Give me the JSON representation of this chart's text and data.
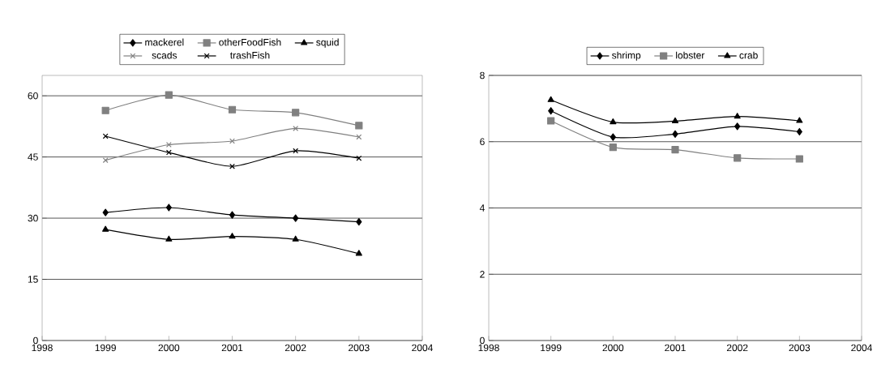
{
  "chart_data": [
    {
      "type": "line",
      "x": [
        1999,
        2000,
        2001,
        2002,
        2003
      ],
      "xlim": [
        1998,
        2004
      ],
      "xticks": [
        1998,
        1999,
        2000,
        2001,
        2002,
        2003,
        2004
      ],
      "ylim": [
        0,
        65
      ],
      "yticks": [
        0,
        15,
        30,
        45,
        60
      ],
      "grid": "y",
      "legend": "top",
      "line_style": "solid",
      "series": [
        {
          "name": "mackerel",
          "color": "#000000",
          "marker": "diamond",
          "values": [
            31.4,
            32.6,
            30.8,
            30.0,
            29.1
          ]
        },
        {
          "name": "otherFoodFish",
          "color": "#808080",
          "marker": "square",
          "values": [
            56.4,
            60.2,
            56.6,
            55.9,
            52.7
          ]
        },
        {
          "name": "squid",
          "color": "#000000",
          "marker": "triangle",
          "values": [
            27.2,
            24.8,
            25.5,
            24.8,
            21.3
          ]
        },
        {
          "name": "scads",
          "color": "#808080",
          "marker": "cross",
          "values": [
            44.2,
            48.0,
            48.9,
            52.0,
            49.9
          ]
        },
        {
          "name": "trashFish",
          "color": "#000000",
          "marker": "cross",
          "values": [
            50.1,
            46.1,
            42.7,
            46.5,
            44.7
          ]
        }
      ]
    },
    {
      "type": "line",
      "x": [
        1999,
        2000,
        2001,
        2002,
        2003
      ],
      "xlim": [
        1998,
        2004
      ],
      "xticks": [
        1998,
        1999,
        2000,
        2001,
        2002,
        2003,
        2004
      ],
      "ylim": [
        0,
        8
      ],
      "yticks": [
        0,
        2,
        4,
        6,
        8
      ],
      "grid": "y",
      "legend": "top",
      "line_style": "solid",
      "series": [
        {
          "name": "shrimp",
          "color": "#000000",
          "marker": "diamond",
          "values": [
            6.93,
            6.14,
            6.23,
            6.46,
            6.3
          ]
        },
        {
          "name": "lobster",
          "color": "#808080",
          "marker": "square",
          "values": [
            6.63,
            5.83,
            5.76,
            5.51,
            5.48
          ]
        },
        {
          "name": "crab",
          "color": "#000000",
          "marker": "triangle",
          "values": [
            7.26,
            6.59,
            6.62,
            6.76,
            6.63
          ]
        }
      ]
    }
  ]
}
